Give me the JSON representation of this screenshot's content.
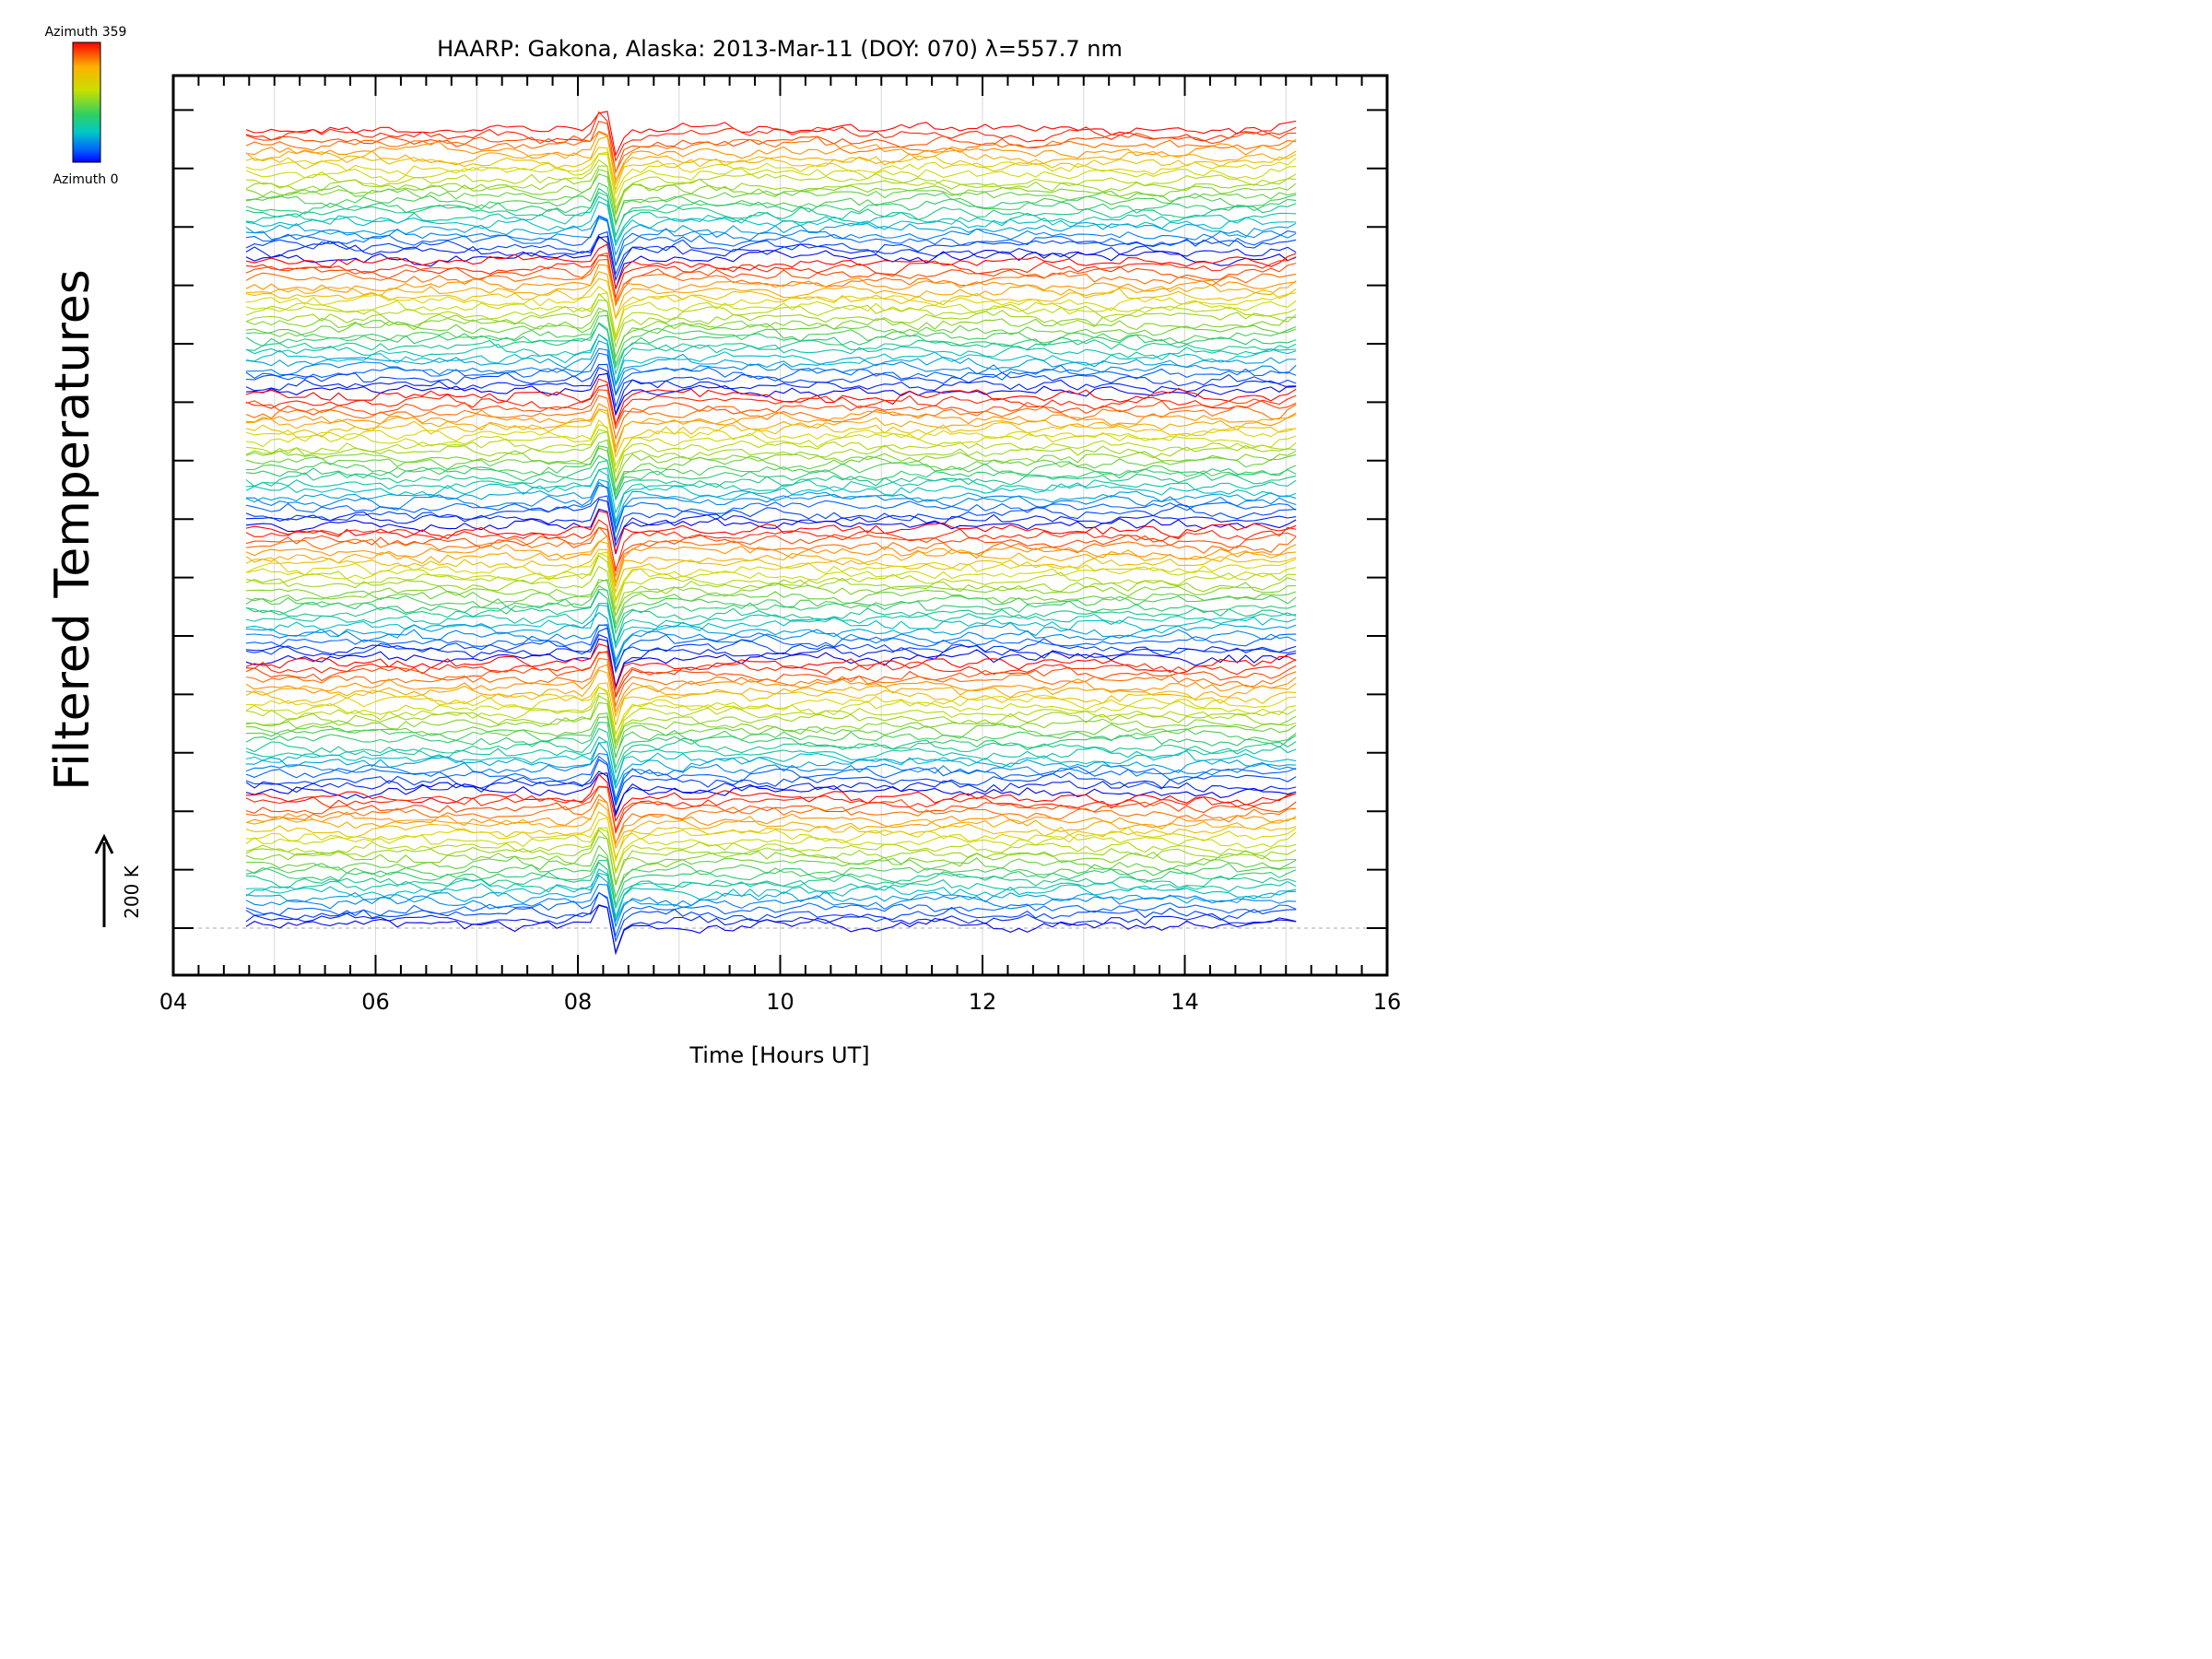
{
  "chart_data": {
    "type": "line",
    "title": "HAARP: Gakona,  Alaska: 2013-Mar-11 (DOY: 070) λ=557.7 nm",
    "xlabel": "Time [Hours UT]",
    "ylabel": "Filtered Temperatures",
    "xlim": [
      4,
      16
    ],
    "x_ticks": [
      "04",
      "06",
      "08",
      "10",
      "12",
      "14",
      "16"
    ],
    "grid": "vertical-dotted-hourly",
    "data_range_hours": [
      4.72,
      15.1
    ],
    "colorbar": {
      "top_label": "Azimuth 359",
      "bottom_label": "Azimuth 0",
      "placement": "top-left",
      "colors": [
        "#ff0000",
        "#ffb000",
        "#c8e000",
        "#40d040",
        "#00c8c8",
        "#0060ff",
        "#0000ff"
      ]
    },
    "scale_bar": {
      "label": "200 K",
      "value_k": 200
    },
    "series_groups": 6,
    "series_per_group": 24,
    "notable_feature": {
      "x": 8.3,
      "description_text": ""
    }
  }
}
